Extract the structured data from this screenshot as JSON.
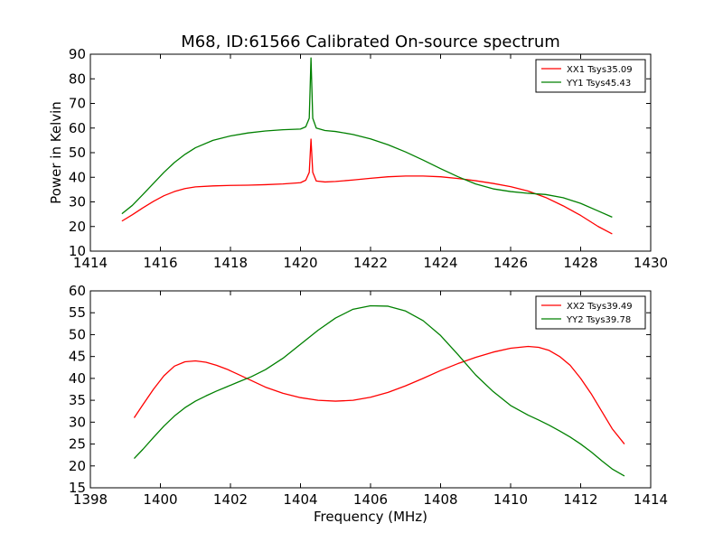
{
  "figure": {
    "title": "M68, ID:61566 Calibrated On-source spectrum"
  },
  "colors": {
    "series_1": "#ff0000",
    "series_2": "#008000"
  },
  "chart_data": [
    {
      "type": "line",
      "title": "M68, ID:61566 Calibrated On-source spectrum",
      "xlabel": "",
      "ylabel": "Power in Kelvin",
      "xlim": [
        1414,
        1430
      ],
      "ylim": [
        10,
        90
      ],
      "xticks": [
        "1414",
        "1416",
        "1418",
        "1420",
        "1422",
        "1424",
        "1426",
        "1428",
        "1430"
      ],
      "yticks": [
        "10",
        "20",
        "30",
        "40",
        "50",
        "60",
        "70",
        "80",
        "90"
      ],
      "grid": false,
      "legend": "top-right",
      "series": [
        {
          "name": "XX1 Tsys35.09",
          "color": "#ff0000",
          "x": [
            1414.9,
            1415.2,
            1415.5,
            1415.8,
            1416.1,
            1416.4,
            1416.7,
            1417.0,
            1417.5,
            1418.0,
            1418.5,
            1419.0,
            1419.5,
            1420.0,
            1420.15,
            1420.25,
            1420.3,
            1420.35,
            1420.45,
            1420.7,
            1421.0,
            1421.5,
            1422.0,
            1422.5,
            1423.0,
            1423.5,
            1424.0,
            1424.5,
            1425.0,
            1425.5,
            1426.0,
            1426.5,
            1427.0,
            1427.5,
            1428.0,
            1428.5,
            1428.9
          ],
          "y": [
            22.2,
            24.8,
            27.6,
            30.2,
            32.5,
            34.2,
            35.4,
            36.1,
            36.5,
            36.7,
            36.8,
            37.0,
            37.3,
            37.8,
            38.8,
            42.0,
            55.5,
            42.0,
            38.5,
            38.1,
            38.3,
            38.9,
            39.6,
            40.2,
            40.5,
            40.5,
            40.2,
            39.5,
            38.6,
            37.5,
            36.2,
            34.4,
            31.8,
            28.4,
            24.5,
            20.0,
            17.0
          ]
        },
        {
          "name": "YY1 Tsys45.43",
          "color": "#008000",
          "x": [
            1414.9,
            1415.2,
            1415.5,
            1415.8,
            1416.1,
            1416.4,
            1416.7,
            1417.0,
            1417.5,
            1418.0,
            1418.5,
            1419.0,
            1419.5,
            1420.0,
            1420.15,
            1420.25,
            1420.3,
            1420.35,
            1420.45,
            1420.7,
            1421.0,
            1421.5,
            1422.0,
            1422.5,
            1423.0,
            1423.5,
            1424.0,
            1424.5,
            1425.0,
            1425.5,
            1426.0,
            1426.5,
            1427.0,
            1427.5,
            1428.0,
            1428.5,
            1428.9
          ],
          "y": [
            25.2,
            28.6,
            33.0,
            37.5,
            42.0,
            46.0,
            49.3,
            52.0,
            55.0,
            56.8,
            58.0,
            58.8,
            59.3,
            59.6,
            60.5,
            64.0,
            88.5,
            64.0,
            60.0,
            59.0,
            58.6,
            57.4,
            55.6,
            53.2,
            50.3,
            47.0,
            43.5,
            40.2,
            37.3,
            35.3,
            34.2,
            33.5,
            33.0,
            31.7,
            29.4,
            26.3,
            23.8
          ]
        }
      ]
    },
    {
      "type": "line",
      "title": "",
      "xlabel": "Frequency (MHz)",
      "ylabel": "",
      "xlim": [
        1398,
        1414
      ],
      "ylim": [
        15,
        60
      ],
      "xticks": [
        "1398",
        "1400",
        "1402",
        "1404",
        "1406",
        "1408",
        "1410",
        "1412",
        "1414"
      ],
      "yticks": [
        "15",
        "20",
        "25",
        "30",
        "35",
        "40",
        "45",
        "50",
        "55",
        "60"
      ],
      "grid": false,
      "legend": "top-right",
      "series": [
        {
          "name": "XX2 Tsys39.49",
          "color": "#ff0000",
          "x": [
            1399.25,
            1399.5,
            1399.8,
            1400.1,
            1400.4,
            1400.7,
            1401.0,
            1401.3,
            1401.6,
            1401.9,
            1402.2,
            1402.6,
            1403.0,
            1403.5,
            1404.0,
            1404.5,
            1405.0,
            1405.5,
            1406.0,
            1406.5,
            1407.0,
            1407.5,
            1408.0,
            1408.5,
            1409.0,
            1409.5,
            1410.0,
            1410.5,
            1410.8,
            1411.1,
            1411.4,
            1411.7,
            1412.0,
            1412.3,
            1412.6,
            1412.9,
            1413.25
          ],
          "y": [
            31.0,
            34.0,
            37.5,
            40.6,
            42.8,
            43.8,
            44.0,
            43.7,
            43.0,
            42.1,
            41.0,
            39.5,
            38.0,
            36.6,
            35.6,
            35.0,
            34.8,
            35.0,
            35.7,
            36.8,
            38.3,
            40.0,
            41.8,
            43.4,
            44.8,
            46.0,
            46.9,
            47.3,
            47.1,
            46.4,
            45.0,
            43.0,
            40.0,
            36.5,
            32.5,
            28.5,
            25.0
          ]
        },
        {
          "name": "YY2 Tsys39.78",
          "color": "#008000",
          "x": [
            1399.25,
            1399.5,
            1399.8,
            1400.1,
            1400.4,
            1400.7,
            1401.0,
            1401.3,
            1401.6,
            1401.9,
            1402.2,
            1402.6,
            1403.0,
            1403.5,
            1404.0,
            1404.5,
            1405.0,
            1405.5,
            1406.0,
            1406.5,
            1407.0,
            1407.5,
            1408.0,
            1408.5,
            1409.0,
            1409.5,
            1410.0,
            1410.5,
            1410.8,
            1411.1,
            1411.4,
            1411.7,
            1412.0,
            1412.3,
            1412.6,
            1412.9,
            1413.25
          ],
          "y": [
            21.7,
            23.8,
            26.5,
            29.1,
            31.4,
            33.3,
            34.8,
            36.0,
            37.1,
            38.1,
            39.1,
            40.4,
            42.0,
            44.6,
            47.8,
            51.0,
            53.8,
            55.8,
            56.6,
            56.5,
            55.4,
            53.2,
            49.8,
            45.4,
            40.8,
            37.0,
            33.8,
            31.6,
            30.5,
            29.3,
            28.0,
            26.6,
            25.0,
            23.2,
            21.2,
            19.3,
            17.7
          ]
        }
      ]
    }
  ]
}
